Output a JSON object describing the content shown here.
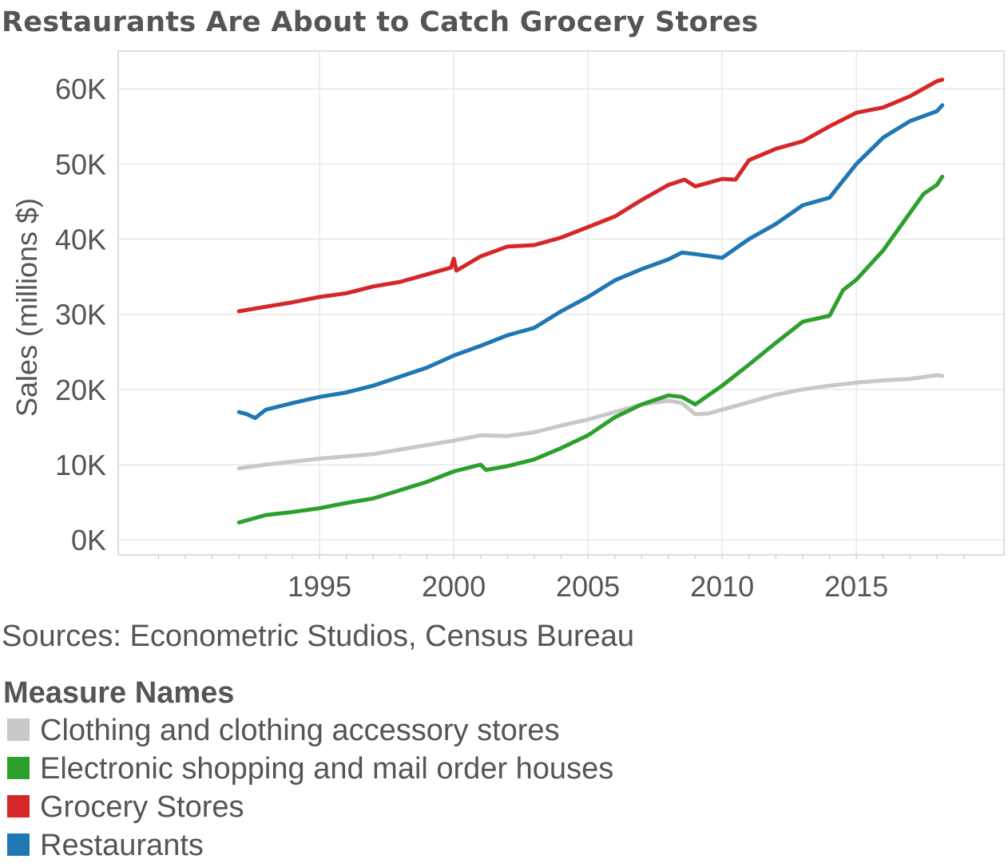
{
  "title": "Restaurants Are About to Catch Grocery Stores",
  "source": "Sources: Econometric Studios, Census Bureau",
  "legend": {
    "title": "Measure Names",
    "items": [
      {
        "label": "Clothing and clothing accessory stores",
        "color": "#c8c8c8"
      },
      {
        "label": "Electronic shopping and mail order houses",
        "color": "#2ca02c"
      },
      {
        "label": "Grocery Stores",
        "color": "#d62728"
      },
      {
        "label": "Restaurants",
        "color": "#1f77b4"
      }
    ]
  },
  "chart_data": {
    "type": "line",
    "title": "Restaurants Are About to Catch Grocery Stores",
    "xlabel": "",
    "ylabel": "Sales (millions $)",
    "xlim": [
      1987.5,
      2020.5
    ],
    "ylim": [
      -2000,
      65000
    ],
    "xticks": [
      1995,
      2000,
      2005,
      2010,
      2015
    ],
    "xtick_labels": [
      "1995",
      "2000",
      "2005",
      "2010",
      "2015"
    ],
    "yticks": [
      0,
      10000,
      20000,
      30000,
      40000,
      50000,
      60000
    ],
    "ytick_labels": [
      "0K",
      "10K",
      "20K",
      "30K",
      "40K",
      "50K",
      "60K"
    ],
    "grid": true,
    "series": [
      {
        "name": "Clothing and clothing accessory stores",
        "color": "#c8c8c8",
        "x": [
          1992.0,
          1993.0,
          1994.0,
          1995.0,
          1996.0,
          1997.0,
          1998.0,
          1999.0,
          2000.0,
          2001.0,
          2002.0,
          2003.0,
          2004.0,
          2005.0,
          2006.0,
          2007.0,
          2008.0,
          2008.5,
          2009.0,
          2009.5,
          2010.0,
          2011.0,
          2012.0,
          2013.0,
          2014.0,
          2015.0,
          2016.0,
          2017.0,
          2018.0,
          2018.2
        ],
        "y": [
          9500,
          10000,
          10400,
          10800,
          11100,
          11400,
          12000,
          12600,
          13200,
          13900,
          13800,
          14300,
          15200,
          16000,
          17000,
          18000,
          18500,
          18200,
          16700,
          16800,
          17300,
          18300,
          19300,
          20000,
          20500,
          20900,
          21200,
          21400,
          21900,
          21800
        ]
      },
      {
        "name": "Electronic shopping and mail order houses",
        "color": "#2ca02c",
        "x": [
          1992.0,
          1993.0,
          1994.0,
          1995.0,
          1996.0,
          1997.0,
          1998.0,
          1999.0,
          2000.0,
          2001.0,
          2001.2,
          2002.0,
          2003.0,
          2004.0,
          2005.0,
          2006.0,
          2007.0,
          2008.0,
          2008.5,
          2009.0,
          2010.0,
          2011.0,
          2012.0,
          2013.0,
          2014.0,
          2014.5,
          2015.0,
          2016.0,
          2017.0,
          2017.5,
          2018.0,
          2018.2
        ],
        "y": [
          2300,
          3300,
          3700,
          4200,
          4900,
          5500,
          6600,
          7700,
          9100,
          10000,
          9300,
          9800,
          10700,
          12200,
          13900,
          16300,
          18000,
          19200,
          19000,
          18000,
          20500,
          23300,
          26200,
          29000,
          29800,
          33200,
          34600,
          38500,
          43500,
          46000,
          47200,
          48300
        ]
      },
      {
        "name": "Grocery Stores",
        "color": "#d62728",
        "x": [
          1992.0,
          1993.0,
          1994.0,
          1995.0,
          1996.0,
          1997.0,
          1998.0,
          1999.0,
          1999.9,
          2000.0,
          2000.1,
          2001.0,
          2002.0,
          2003.0,
          2004.0,
          2005.0,
          2006.0,
          2007.0,
          2008.0,
          2008.6,
          2009.0,
          2010.0,
          2010.5,
          2011.0,
          2012.0,
          2013.0,
          2014.0,
          2015.0,
          2016.0,
          2017.0,
          2018.0,
          2018.2
        ],
        "y": [
          30400,
          31000,
          31600,
          32300,
          32800,
          33700,
          34300,
          35300,
          36200,
          37400,
          35800,
          37700,
          39000,
          39200,
          40200,
          41600,
          43000,
          45200,
          47200,
          47900,
          47000,
          48000,
          47900,
          50500,
          52000,
          53000,
          55000,
          56800,
          57500,
          59000,
          61000,
          61200
        ]
      },
      {
        "name": "Restaurants",
        "color": "#1f77b4",
        "x": [
          1992.0,
          1992.3,
          1992.6,
          1993.0,
          1994.0,
          1995.0,
          1996.0,
          1997.0,
          1998.0,
          1999.0,
          2000.0,
          2001.0,
          2002.0,
          2003.0,
          2004.0,
          2005.0,
          2006.0,
          2007.0,
          2008.0,
          2008.5,
          2009.0,
          2010.0,
          2011.0,
          2012.0,
          2013.0,
          2014.0,
          2015.0,
          2016.0,
          2017.0,
          2018.0,
          2018.2
        ],
        "y": [
          17000,
          16700,
          16200,
          17300,
          18200,
          19000,
          19600,
          20500,
          21700,
          22900,
          24500,
          25800,
          27200,
          28200,
          30400,
          32300,
          34500,
          36000,
          37300,
          38200,
          38000,
          37500,
          40000,
          42000,
          44500,
          45500,
          50000,
          53500,
          55700,
          57000,
          57800
        ]
      }
    ]
  }
}
